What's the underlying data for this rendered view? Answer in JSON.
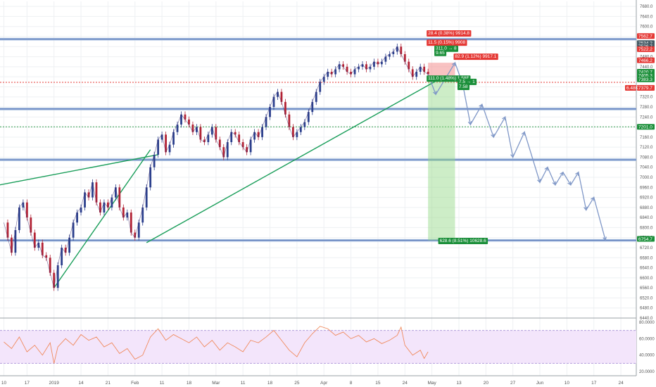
{
  "chart_data": {
    "type": "line",
    "price_axis": {
      "ylim": [
        6440,
        7700
      ],
      "ticks": [
        "7680.0",
        "7640.0",
        "7600.0",
        "7560.0",
        "7520.0",
        "7480.0",
        "7440.0",
        "7400.0",
        "7360.0",
        "7320.0",
        "7280.0",
        "7240.0",
        "7200.0",
        "7160.0",
        "7120.0",
        "7080.0",
        "7040.0",
        "7000.0",
        "6960.0",
        "6920.0",
        "6880.0",
        "6840.0",
        "6800.0",
        "6760.0",
        "6720.0",
        "6680.0",
        "6640.0",
        "6600.0",
        "6560.0",
        "6520.0",
        "6480.0",
        "6440.0"
      ]
    },
    "rsi_axis": {
      "ylim": [
        15,
        85
      ],
      "ticks": [
        "80.0000",
        "60.0000",
        "40.0000",
        "20.0000"
      ],
      "band": [
        30,
        70
      ]
    },
    "x_ticks": [
      "10",
      "17",
      "2019",
      "14",
      "21",
      "Feb",
      "11",
      "18",
      "Mar",
      "11",
      "18",
      "25",
      "Apr",
      "8",
      "15",
      "24",
      "May",
      "13",
      "20",
      "27",
      "Jun",
      "10",
      "17",
      "24"
    ],
    "x_tick_index": [
      0,
      6,
      13,
      20,
      27,
      34,
      41,
      48,
      55,
      62,
      69,
      76,
      83,
      90,
      97,
      104,
      111,
      118,
      125,
      132,
      139,
      146,
      153,
      160
    ],
    "x_range": [
      -1,
      164
    ],
    "price_series": [
      [
        0,
        6820
      ],
      [
        1,
        6760
      ],
      [
        2,
        6700
      ],
      [
        3,
        6790
      ],
      [
        4,
        6880
      ],
      [
        5,
        6900
      ],
      [
        6,
        6840
      ],
      [
        7,
        6780
      ],
      [
        8,
        6720
      ],
      [
        9,
        6740
      ],
      [
        10,
        6690
      ],
      [
        11,
        6680
      ],
      [
        12,
        6620
      ],
      [
        13,
        6560
      ],
      [
        14,
        6650
      ],
      [
        15,
        6720
      ],
      [
        16,
        6700
      ],
      [
        17,
        6760
      ],
      [
        18,
        6820
      ],
      [
        19,
        6860
      ],
      [
        20,
        6880
      ],
      [
        21,
        6940
      ],
      [
        22,
        6920
      ],
      [
        23,
        6980
      ],
      [
        24,
        6900
      ],
      [
        25,
        6860
      ],
      [
        26,
        6900
      ],
      [
        27,
        6880
      ],
      [
        28,
        6920
      ],
      [
        29,
        6960
      ],
      [
        30,
        6880
      ],
      [
        31,
        6840
      ],
      [
        32,
        6860
      ],
      [
        33,
        6780
      ],
      [
        34,
        6760
      ],
      [
        35,
        6820
      ],
      [
        36,
        6880
      ],
      [
        37,
        6960
      ],
      [
        38,
        7040
      ],
      [
        39,
        7090
      ],
      [
        40,
        7150
      ],
      [
        41,
        7170
      ],
      [
        42,
        7100
      ],
      [
        43,
        7130
      ],
      [
        44,
        7180
      ],
      [
        45,
        7210
      ],
      [
        46,
        7250
      ],
      [
        47,
        7230
      ],
      [
        48,
        7210
      ],
      [
        49,
        7180
      ],
      [
        50,
        7200
      ],
      [
        51,
        7150
      ],
      [
        52,
        7140
      ],
      [
        53,
        7170
      ],
      [
        54,
        7200
      ],
      [
        55,
        7150
      ],
      [
        56,
        7120
      ],
      [
        57,
        7080
      ],
      [
        58,
        7140
      ],
      [
        59,
        7180
      ],
      [
        60,
        7170
      ],
      [
        61,
        7140
      ],
      [
        62,
        7120
      ],
      [
        63,
        7100
      ],
      [
        64,
        7150
      ],
      [
        65,
        7180
      ],
      [
        66,
        7160
      ],
      [
        67,
        7200
      ],
      [
        68,
        7240
      ],
      [
        69,
        7280
      ],
      [
        70,
        7320
      ],
      [
        71,
        7340
      ],
      [
        72,
        7300
      ],
      [
        73,
        7250
      ],
      [
        74,
        7200
      ],
      [
        75,
        7160
      ],
      [
        76,
        7180
      ],
      [
        77,
        7200
      ],
      [
        78,
        7220
      ],
      [
        79,
        7260
      ],
      [
        80,
        7300
      ],
      [
        81,
        7340
      ],
      [
        82,
        7380
      ],
      [
        83,
        7400
      ],
      [
        84,
        7420
      ],
      [
        85,
        7410
      ],
      [
        86,
        7430
      ],
      [
        87,
        7450
      ],
      [
        88,
        7440
      ],
      [
        89,
        7420
      ],
      [
        90,
        7410
      ],
      [
        91,
        7430
      ],
      [
        92,
        7440
      ],
      [
        93,
        7450
      ],
      [
        94,
        7430
      ],
      [
        95,
        7440
      ],
      [
        96,
        7460
      ],
      [
        97,
        7450
      ],
      [
        98,
        7460
      ],
      [
        99,
        7480
      ],
      [
        100,
        7490
      ],
      [
        101,
        7500
      ],
      [
        102,
        7520
      ],
      [
        103,
        7490
      ],
      [
        104,
        7460
      ],
      [
        105,
        7430
      ],
      [
        106,
        7400
      ],
      [
        107,
        7420
      ],
      [
        108,
        7440
      ],
      [
        109,
        7420
      ],
      [
        110,
        7410
      ]
    ],
    "projected_path": [
      [
        110,
        7410
      ],
      [
        112,
        7330
      ],
      [
        117,
        7456
      ],
      [
        119,
        7370
      ],
      [
        121,
        7210
      ],
      [
        124,
        7290
      ],
      [
        127,
        7160
      ],
      [
        130,
        7240
      ],
      [
        132,
        7080
      ],
      [
        135,
        7180
      ],
      [
        139,
        6980
      ],
      [
        141,
        7040
      ],
      [
        143,
        6970
      ],
      [
        145,
        7020
      ],
      [
        147,
        6970
      ],
      [
        149,
        7020
      ],
      [
        151,
        6870
      ],
      [
        153,
        6920
      ],
      [
        156,
        6750
      ]
    ],
    "horizontal_levels": [
      {
        "price": 7550,
        "style": "blue-band"
      },
      {
        "price": 7272,
        "style": "blue-band"
      },
      {
        "price": 7070,
        "style": "blue-band"
      },
      {
        "price": 6749,
        "style": "blue-band"
      },
      {
        "price": 7378,
        "style": "red-dotted"
      },
      {
        "price": 7201,
        "style": "green-dotted"
      }
    ],
    "trendlines": [
      {
        "from": [
          13,
          6560
        ],
        "to": [
          38,
          7110
        ],
        "color": "#1a9e5a"
      },
      {
        "from": [
          -1,
          6970
        ],
        "to": [
          40,
          7090
        ],
        "color": "#1a9e5a"
      },
      {
        "from": [
          37,
          6740
        ],
        "to": [
          114,
          7400
        ],
        "color": "#1a9e5a"
      }
    ],
    "position": {
      "x_start": 110,
      "x_end": 117,
      "entry": 7386,
      "stop": 7456,
      "target": 6749
    },
    "price_labels": [
      {
        "text": "7562.7",
        "price": 7562,
        "color": "#e53935"
      },
      {
        "text": "7534.2",
        "price": 7534,
        "color": "#455a64"
      },
      {
        "text": "7526.7",
        "price": 7521,
        "color": "#455a64"
      },
      {
        "text": "7522.2",
        "price": 7510,
        "color": "#e53935"
      },
      {
        "text": "7466.2",
        "price": 7466,
        "color": "#e53935"
      },
      {
        "text": "7420.7",
        "price": 7420,
        "color": "#1b8f3a"
      },
      {
        "text": "7405.3",
        "price": 7405,
        "color": "#1b8f3a"
      },
      {
        "text": "7383.3",
        "price": 7390,
        "color": "#1b8f3a"
      },
      {
        "text": "7379.7",
        "price": 7356,
        "color": "#e53935"
      },
      {
        "text": "6.48K",
        "price": 7356,
        "color": "#e53935",
        "offset": true
      },
      {
        "text": "7201.0",
        "price": 7201,
        "color": "#1b8f3a"
      },
      {
        "text": "6754.7",
        "price": 6755,
        "color": "#1b8f3a"
      }
    ],
    "annotations": [
      {
        "text": "28.4 (0.38%) 9914.8",
        "x": 110,
        "price": 7575,
        "color": "#e53935"
      },
      {
        "text": "11.5 (0.15%) 9908",
        "x": 110,
        "price": 7538,
        "color": "#e53935"
      },
      {
        "text": "311.0 → 8",
        "x": 112,
        "price": 7514,
        "color": "#1b8f3a"
      },
      {
        "text": "9.65",
        "x": 112,
        "price": 7497,
        "color": "#1b8f3a"
      },
      {
        "text": "82.9 (1.12%) 9917.1",
        "x": 117,
        "price": 7482,
        "color": "#e53935"
      },
      {
        "text": "111.0 (1.48%) 1.58F",
        "x": 110,
        "price": 7395,
        "color": "#1b8f3a"
      },
      {
        "text": "7.5  → 1",
        "x": 118,
        "price": 7382,
        "color": "#1b8f3a"
      },
      {
        "text": "7.58",
        "x": 118,
        "price": 7362,
        "color": "#1b8f3a"
      },
      {
        "text": "628.6 (8.51%) 10628.6",
        "x": 113,
        "price": 6749,
        "color": "#1b8f3a"
      }
    ],
    "rsi_series": [
      [
        0,
        56
      ],
      [
        2,
        48
      ],
      [
        4,
        62
      ],
      [
        6,
        44
      ],
      [
        8,
        52
      ],
      [
        10,
        40
      ],
      [
        12,
        55
      ],
      [
        13,
        30
      ],
      [
        14,
        50
      ],
      [
        16,
        60
      ],
      [
        18,
        52
      ],
      [
        20,
        65
      ],
      [
        22,
        58
      ],
      [
        24,
        62
      ],
      [
        26,
        50
      ],
      [
        28,
        55
      ],
      [
        30,
        42
      ],
      [
        32,
        48
      ],
      [
        34,
        35
      ],
      [
        36,
        40
      ],
      [
        38,
        62
      ],
      [
        40,
        72
      ],
      [
        42,
        58
      ],
      [
        44,
        65
      ],
      [
        46,
        60
      ],
      [
        48,
        55
      ],
      [
        50,
        62
      ],
      [
        52,
        50
      ],
      [
        54,
        58
      ],
      [
        56,
        46
      ],
      [
        58,
        55
      ],
      [
        60,
        50
      ],
      [
        62,
        44
      ],
      [
        64,
        58
      ],
      [
        66,
        55
      ],
      [
        68,
        62
      ],
      [
        70,
        70
      ],
      [
        72,
        58
      ],
      [
        74,
        46
      ],
      [
        76,
        38
      ],
      [
        78,
        55
      ],
      [
        80,
        66
      ],
      [
        82,
        75
      ],
      [
        84,
        72
      ],
      [
        86,
        64
      ],
      [
        88,
        68
      ],
      [
        90,
        60
      ],
      [
        92,
        64
      ],
      [
        94,
        56
      ],
      [
        96,
        60
      ],
      [
        98,
        54
      ],
      [
        100,
        58
      ],
      [
        102,
        64
      ],
      [
        103,
        74
      ],
      [
        104,
        52
      ],
      [
        106,
        40
      ],
      [
        108,
        46
      ],
      [
        109,
        36
      ],
      [
        110,
        44
      ]
    ]
  }
}
